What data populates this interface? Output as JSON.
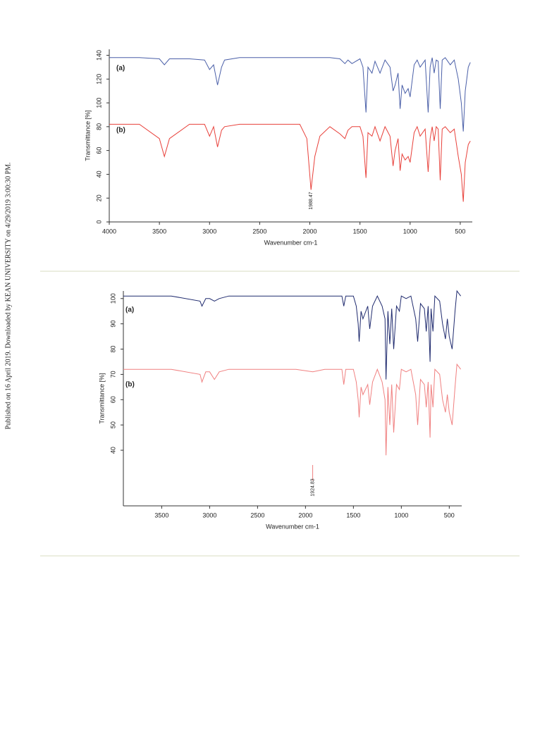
{
  "side_note": "Published on 16 April 2019. Downloaded by KEAN UNIVERSITY on 4/29/2019 3:00:30 PM.",
  "chart_data": [
    {
      "type": "line",
      "ylabel": "Transmittance [%]",
      "xlabel": "Wavenumber cm-1",
      "xlim": [
        4000,
        380
      ],
      "xticks": [
        4000,
        3500,
        3000,
        2500,
        2000,
        1500,
        1000,
        500
      ],
      "ylim": [
        0,
        145
      ],
      "yticks": [
        0,
        20,
        40,
        60,
        80,
        100,
        120,
        140
      ],
      "x": [
        4000,
        3700,
        3500,
        3450,
        3400,
        3200,
        3050,
        3000,
        2960,
        2920,
        2880,
        2850,
        2700,
        2400,
        2100,
        2030,
        1988,
        1950,
        1900,
        1800,
        1700,
        1650,
        1620,
        1580,
        1500,
        1470,
        1440,
        1420,
        1380,
        1350,
        1300,
        1250,
        1200,
        1170,
        1150,
        1120,
        1100,
        1080,
        1050,
        1020,
        1000,
        960,
        930,
        900,
        850,
        820,
        800,
        780,
        760,
        740,
        720,
        700,
        680,
        650,
        600,
        560,
        520,
        490,
        470,
        450,
        420,
        400
      ],
      "series": [
        {
          "name": "(a)",
          "color": "#4a5fa8",
          "values": [
            138,
            138,
            137,
            132,
            137,
            137,
            136,
            128,
            132,
            115,
            130,
            136,
            138,
            138,
            138,
            138,
            138,
            138,
            138,
            138,
            137,
            133,
            136,
            133,
            137,
            130,
            92,
            130,
            125,
            135,
            125,
            136,
            130,
            110,
            115,
            125,
            95,
            115,
            108,
            112,
            105,
            132,
            136,
            130,
            136,
            92,
            130,
            138,
            125,
            136,
            135,
            95,
            136,
            138,
            132,
            136,
            120,
            100,
            76,
            110,
            130,
            134
          ]
        },
        {
          "name": "(b)",
          "color": "#e8403a",
          "values": [
            82,
            82,
            70,
            55,
            70,
            82,
            82,
            72,
            80,
            63,
            77,
            80,
            82,
            82,
            82,
            70,
            27,
            55,
            72,
            80,
            74,
            70,
            77,
            80,
            80,
            72,
            37,
            75,
            72,
            80,
            68,
            80,
            72,
            47,
            60,
            70,
            43,
            57,
            52,
            55,
            50,
            75,
            80,
            72,
            78,
            42,
            70,
            80,
            68,
            80,
            78,
            35,
            78,
            80,
            75,
            78,
            55,
            40,
            17,
            50,
            65,
            68
          ]
        }
      ],
      "annotations": [
        {
          "text": "1988.47",
          "x": 1988.47
        }
      ]
    },
    {
      "type": "line",
      "ylabel": "Transmittance [%]",
      "xlabel": "Wavenumber cm-1",
      "xlim": [
        3900,
        370
      ],
      "xticks": [
        3500,
        3000,
        2500,
        2000,
        1500,
        1000,
        500
      ],
      "ylim": [
        18,
        103
      ],
      "yticks": [
        40,
        50,
        60,
        70,
        80,
        90,
        100
      ],
      "x": [
        3900,
        3600,
        3400,
        3100,
        3080,
        3040,
        3000,
        2950,
        2900,
        2800,
        2400,
        2100,
        1924,
        1800,
        1620,
        1600,
        1580,
        1500,
        1470,
        1450,
        1440,
        1420,
        1400,
        1350,
        1330,
        1300,
        1250,
        1200,
        1170,
        1160,
        1140,
        1120,
        1100,
        1080,
        1050,
        1020,
        1000,
        950,
        900,
        850,
        830,
        800,
        760,
        740,
        720,
        700,
        690,
        670,
        650,
        600,
        570,
        540,
        520,
        500,
        470,
        440,
        420,
        400,
        380
      ],
      "series": [
        {
          "name": "(a)",
          "color": "#1f2a6e",
          "values": [
            101,
            101,
            101,
            99,
            97,
            100,
            100,
            99,
            100,
            101,
            101,
            101,
            101,
            101,
            101,
            97,
            101,
            101,
            97,
            90,
            83,
            95,
            92,
            97,
            88,
            97,
            101,
            97,
            92,
            68,
            95,
            82,
            96,
            80,
            97,
            95,
            101,
            100,
            101,
            92,
            83,
            98,
            96,
            87,
            97,
            75,
            96,
            87,
            101,
            99,
            90,
            84,
            92,
            85,
            80,
            95,
            103,
            102,
            101
          ]
        },
        {
          "name": "(b)",
          "color": "#f08080",
          "values": [
            72,
            72,
            72,
            70,
            67,
            71,
            71,
            68,
            71,
            72,
            72,
            72,
            71,
            72,
            72,
            66,
            72,
            72,
            67,
            60,
            53,
            65,
            62,
            66,
            58,
            67,
            72,
            67,
            60,
            38,
            65,
            50,
            66,
            47,
            66,
            64,
            72,
            71,
            72,
            62,
            50,
            68,
            66,
            57,
            67,
            45,
            66,
            57,
            72,
            70,
            60,
            55,
            62,
            55,
            50,
            65,
            74,
            73,
            72
          ]
        }
      ],
      "annotations": [
        {
          "text": "1924.83",
          "x": 1924.83
        }
      ]
    }
  ]
}
